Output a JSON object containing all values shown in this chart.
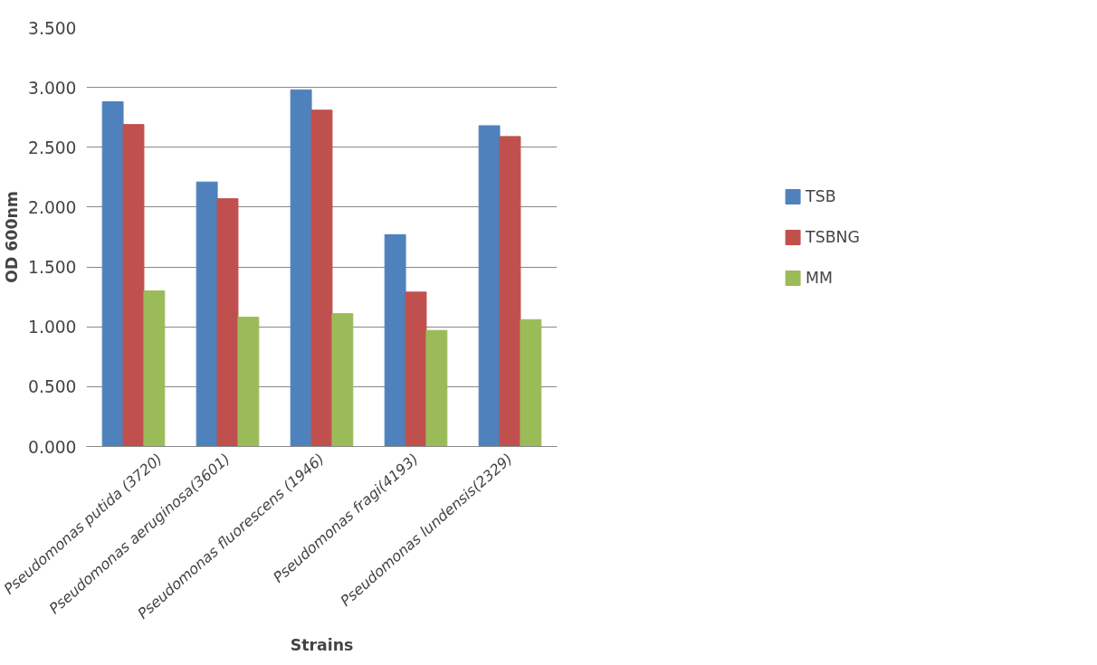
{
  "chart_data": {
    "type": "bar",
    "xlabel": "Strains",
    "ylabel": "OD 600nm",
    "categories": [
      "Pseudomonas putida (3720)",
      "Pseudomonas aeruginosa(3601)",
      "Pseudomonas fluorescens (1946)",
      "Pseudomonas fragi(4193)",
      "Pseudomonas lundensis(2329)"
    ],
    "series": [
      {
        "name": "TSB",
        "color": "#4f81bd",
        "values": [
          2.88,
          2.21,
          2.98,
          1.77,
          2.68
        ]
      },
      {
        "name": "TSBNG",
        "color": "#c0504d",
        "values": [
          2.69,
          2.07,
          2.81,
          1.29,
          2.59
        ]
      },
      {
        "name": "MM",
        "color": "#9bbb59",
        "values": [
          1.3,
          1.08,
          1.11,
          0.97,
          1.06
        ]
      }
    ],
    "ylim": [
      0,
      3.5
    ],
    "yticks": [
      {
        "value": 0,
        "label": "0.000"
      },
      {
        "value": 0.5,
        "label": "0.500"
      },
      {
        "value": 1,
        "label": "1.000"
      },
      {
        "value": 1.5,
        "label": "1.500"
      },
      {
        "value": 2,
        "label": "2.000"
      },
      {
        "value": 2.5,
        "label": "2.500"
      },
      {
        "value": 3,
        "label": "3.000"
      },
      {
        "value": 3.5,
        "label": "3.500"
      }
    ],
    "grid": "y",
    "legend": "right"
  }
}
